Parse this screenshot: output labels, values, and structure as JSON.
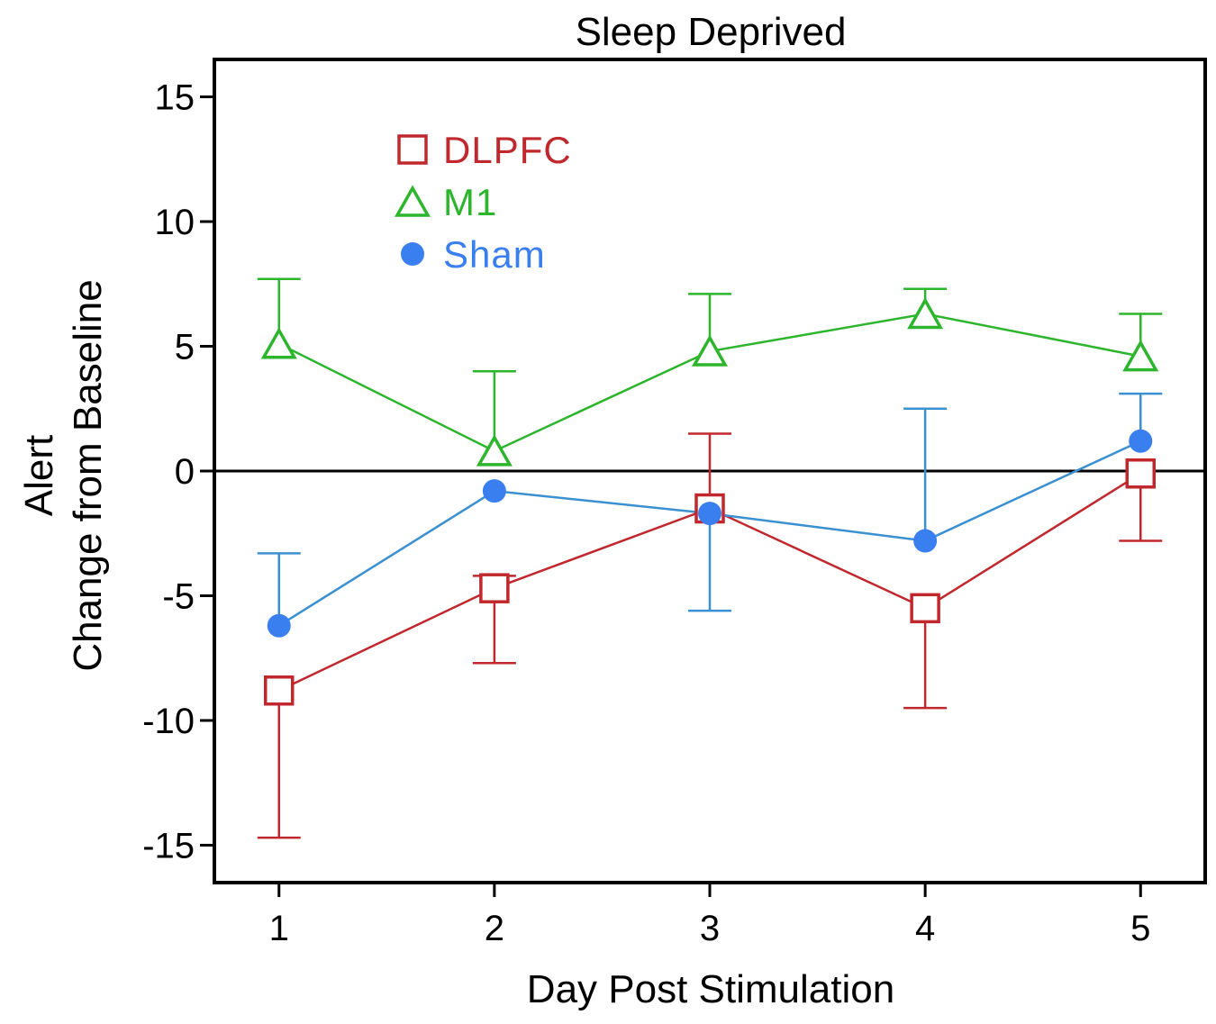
{
  "chart_data": {
    "type": "line",
    "title": "Sleep Deprived",
    "xlabel": "Day Post Stimulation",
    "ylabel_line1": "Alert",
    "ylabel_line2": "Change from Baseline",
    "x": [
      1,
      2,
      3,
      4,
      5
    ],
    "x_ticks": [
      "1",
      "2",
      "3",
      "4",
      "5"
    ],
    "y_ticks": [
      "15",
      "10",
      "5",
      "0",
      "-5",
      "-10",
      "-15"
    ],
    "y_tick_values": [
      15,
      10,
      5,
      0,
      -5,
      -10,
      -15
    ],
    "xlim": [
      0.7,
      5.3
    ],
    "ylim": [
      -16.5,
      16.5
    ],
    "reference_line": 0,
    "legend_position": "top-left",
    "series": [
      {
        "name": "DLPFC",
        "color": "#c0282d",
        "marker": "square",
        "values": [
          -8.8,
          -4.7,
          -1.5,
          -5.5,
          -0.1
        ],
        "err_upper": [
          null,
          -4.2,
          1.5,
          null,
          null
        ],
        "err_lower": [
          -14.7,
          -7.7,
          null,
          -9.5,
          -2.8
        ]
      },
      {
        "name": "M1",
        "color": "#2db52d",
        "marker": "triangle",
        "values": [
          5.1,
          0.8,
          4.8,
          6.3,
          4.6
        ],
        "err_upper": [
          7.7,
          4.0,
          7.1,
          7.3,
          6.3
        ],
        "err_lower": [
          null,
          null,
          null,
          null,
          null
        ]
      },
      {
        "name": "Sham",
        "color": "#3a7ff0",
        "line_color": "#3a90d0",
        "marker": "circle",
        "values": [
          -6.2,
          -0.8,
          -1.7,
          -2.8,
          1.2
        ],
        "err_upper": [
          -3.3,
          null,
          null,
          2.5,
          3.1
        ],
        "err_lower": [
          null,
          null,
          -5.6,
          null,
          null
        ]
      }
    ]
  }
}
